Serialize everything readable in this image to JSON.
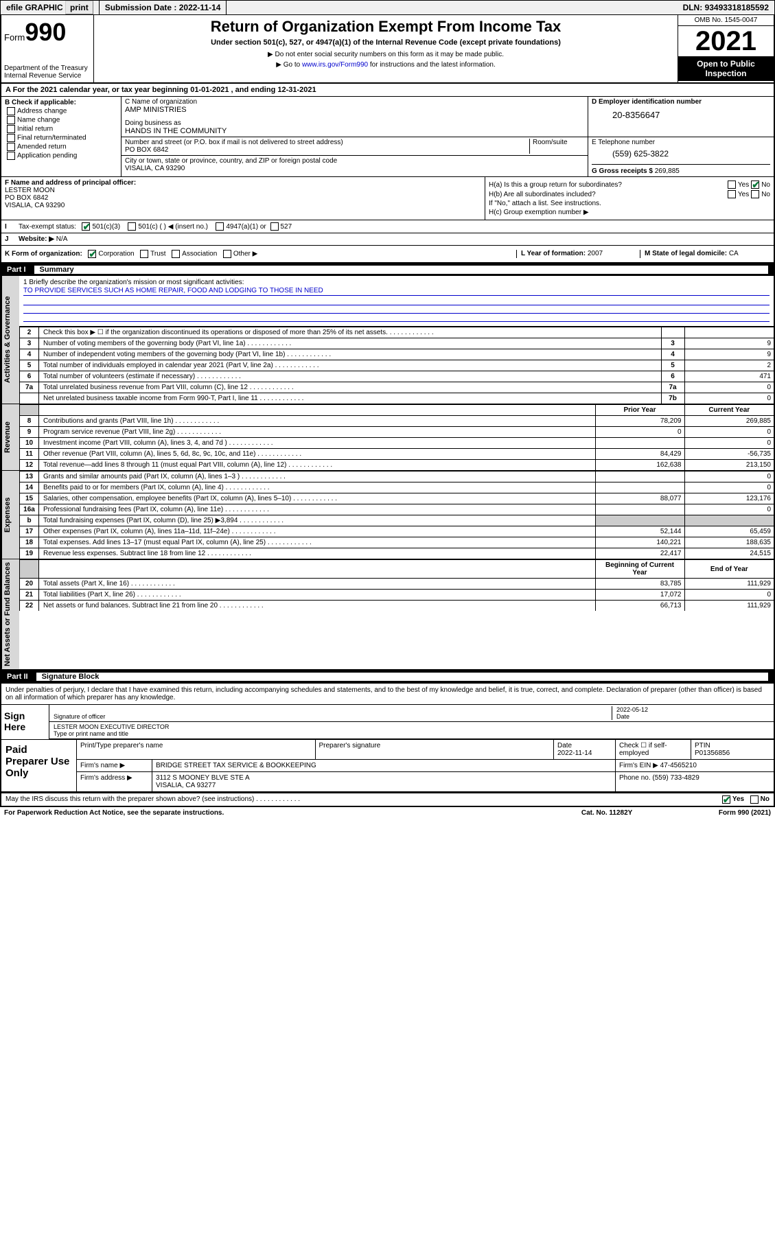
{
  "topbar": {
    "efile": "efile GRAPHIC",
    "print": "print",
    "sub_label": "Submission Date : ",
    "sub_date": "2022-11-14",
    "dln_label": "DLN: ",
    "dln": "93493318185592"
  },
  "header": {
    "form_prefix": "Form",
    "form_num": "990",
    "dept": "Department of the Treasury",
    "irs": "Internal Revenue Service",
    "title": "Return of Organization Exempt From Income Tax",
    "sub1": "Under section 501(c), 527, or 4947(a)(1) of the Internal Revenue Code (except private foundations)",
    "sub2": "▶ Do not enter social security numbers on this form as it may be made public.",
    "sub3_pre": "▶ Go to ",
    "sub3_link": "www.irs.gov/Form990",
    "sub3_post": " for instructions and the latest information.",
    "omb": "OMB No. 1545-0047",
    "year": "2021",
    "open": "Open to Public Inspection"
  },
  "line_a": "For the 2021 calendar year, or tax year beginning 01-01-2021   , and ending 12-31-2021",
  "b": {
    "label": "B Check if applicable:",
    "opts": [
      "Address change",
      "Name change",
      "Initial return",
      "Final return/terminated",
      "Amended return",
      "Application pending"
    ]
  },
  "c": {
    "name_label": "C Name of organization",
    "name": "AMP MINISTRIES",
    "dba_label": "Doing business as",
    "dba": "HANDS IN THE COMMUNITY",
    "addr_label": "Number and street (or P.O. box if mail is not delivered to street address)",
    "room_label": "Room/suite",
    "addr": "PO BOX 6842",
    "city_label": "City or town, state or province, country, and ZIP or foreign postal code",
    "city": "VISALIA, CA  93290"
  },
  "d": {
    "label": "D Employer identification number",
    "ein": "20-8356647"
  },
  "e": {
    "label": "E Telephone number",
    "phone": "(559) 625-3822"
  },
  "g": {
    "label": "G Gross receipts $",
    "val": "269,885"
  },
  "f": {
    "label": "F Name and address of principal officer:",
    "name": "LESTER MOON",
    "addr1": "PO BOX 6842",
    "addr2": "VISALIA, CA  93290"
  },
  "h": {
    "ha": "H(a)  Is this a group return for subordinates?",
    "hb": "H(b)  Are all subordinates included?",
    "hb2": "If \"No,\" attach a list. See instructions.",
    "hc": "H(c)  Group exemption number ▶",
    "yes": "Yes",
    "no": "No"
  },
  "i": {
    "label": "Tax-exempt status:",
    "o1": "501(c)(3)",
    "o2": "501(c) (  ) ◀ (insert no.)",
    "o3": "4947(a)(1) or",
    "o4": "527"
  },
  "j": {
    "label": "Website: ▶",
    "val": "N/A"
  },
  "k": {
    "label": "K Form of organization:",
    "o1": "Corporation",
    "o2": "Trust",
    "o3": "Association",
    "o4": "Other ▶"
  },
  "l": {
    "label": "L Year of formation:",
    "val": "2007"
  },
  "m": {
    "label": "M State of legal domicile:",
    "val": "CA"
  },
  "part1": {
    "num": "Part I",
    "title": "Summary"
  },
  "mission": {
    "q": "1   Briefly describe the organization's mission or most significant activities:",
    "text": "TO PROVIDE SERVICES SUCH AS HOME REPAIR, FOOD AND LODGING TO THOSE IN NEED"
  },
  "tabs": {
    "gov": "Activities & Governance",
    "rev": "Revenue",
    "exp": "Expenses",
    "net": "Net Assets or Fund Balances"
  },
  "gov_rows": [
    {
      "n": "2",
      "d": "Check this box ▶ ☐  if the organization discontinued its operations or disposed of more than 25% of its net assets.",
      "box": "",
      "v": ""
    },
    {
      "n": "3",
      "d": "Number of voting members of the governing body (Part VI, line 1a)",
      "box": "3",
      "v": "9"
    },
    {
      "n": "4",
      "d": "Number of independent voting members of the governing body (Part VI, line 1b)",
      "box": "4",
      "v": "9"
    },
    {
      "n": "5",
      "d": "Total number of individuals employed in calendar year 2021 (Part V, line 2a)",
      "box": "5",
      "v": "2"
    },
    {
      "n": "6",
      "d": "Total number of volunteers (estimate if necessary)",
      "box": "6",
      "v": "471"
    },
    {
      "n": "7a",
      "d": "Total unrelated business revenue from Part VIII, column (C), line 12",
      "box": "7a",
      "v": "0"
    },
    {
      "n": "",
      "d": "Net unrelated business taxable income from Form 990-T, Part I, line 11",
      "box": "7b",
      "v": "0"
    }
  ],
  "twocol_head": {
    "py": "Prior Year",
    "cy": "Current Year"
  },
  "rev_rows": [
    {
      "n": "8",
      "d": "Contributions and grants (Part VIII, line 1h)",
      "py": "78,209",
      "cy": "269,885"
    },
    {
      "n": "9",
      "d": "Program service revenue (Part VIII, line 2g)",
      "py": "0",
      "cy": "0"
    },
    {
      "n": "10",
      "d": "Investment income (Part VIII, column (A), lines 3, 4, and 7d )",
      "py": "",
      "cy": "0"
    },
    {
      "n": "11",
      "d": "Other revenue (Part VIII, column (A), lines 5, 6d, 8c, 9c, 10c, and 11e)",
      "py": "84,429",
      "cy": "-56,735"
    },
    {
      "n": "12",
      "d": "Total revenue—add lines 8 through 11 (must equal Part VIII, column (A), line 12)",
      "py": "162,638",
      "cy": "213,150"
    }
  ],
  "exp_rows": [
    {
      "n": "13",
      "d": "Grants and similar amounts paid (Part IX, column (A), lines 1–3 )",
      "py": "",
      "cy": "0"
    },
    {
      "n": "14",
      "d": "Benefits paid to or for members (Part IX, column (A), line 4)",
      "py": "",
      "cy": "0"
    },
    {
      "n": "15",
      "d": "Salaries, other compensation, employee benefits (Part IX, column (A), lines 5–10)",
      "py": "88,077",
      "cy": "123,176"
    },
    {
      "n": "16a",
      "d": "Professional fundraising fees (Part IX, column (A), line 11e)",
      "py": "",
      "cy": "0"
    },
    {
      "n": "b",
      "d": "Total fundraising expenses (Part IX, column (D), line 25) ▶3,894",
      "py": "—",
      "cy": "—"
    },
    {
      "n": "17",
      "d": "Other expenses (Part IX, column (A), lines 11a–11d, 11f–24e)",
      "py": "52,144",
      "cy": "65,459"
    },
    {
      "n": "18",
      "d": "Total expenses. Add lines 13–17 (must equal Part IX, column (A), line 25)",
      "py": "140,221",
      "cy": "188,635"
    },
    {
      "n": "19",
      "d": "Revenue less expenses. Subtract line 18 from line 12",
      "py": "22,417",
      "cy": "24,515"
    }
  ],
  "net_head": {
    "py": "Beginning of Current Year",
    "cy": "End of Year"
  },
  "net_rows": [
    {
      "n": "20",
      "d": "Total assets (Part X, line 16)",
      "py": "83,785",
      "cy": "111,929"
    },
    {
      "n": "21",
      "d": "Total liabilities (Part X, line 26)",
      "py": "17,072",
      "cy": "0"
    },
    {
      "n": "22",
      "d": "Net assets or fund balances. Subtract line 21 from line 20",
      "py": "66,713",
      "cy": "111,929"
    }
  ],
  "part2": {
    "num": "Part II",
    "title": "Signature Block"
  },
  "sig": {
    "decl": "Under penalties of perjury, I declare that I have examined this return, including accompanying schedules and statements, and to the best of my knowledge and belief, it is true, correct, and complete. Declaration of preparer (other than officer) is based on all information of which preparer has any knowledge.",
    "here": "Sign Here",
    "sig_of": "Signature of officer",
    "date_label": "Date",
    "date": "2022-05-12",
    "name_title": "LESTER MOON  EXECUTIVE DIRECTOR",
    "type_label": "Type or print name and title"
  },
  "prep": {
    "label": "Paid Preparer Use Only",
    "h1": "Print/Type preparer's name",
    "h2": "Preparer's signature",
    "h3": "Date",
    "h3v": "2022-11-14",
    "h4": "Check ☐ if self-employed",
    "h5": "PTIN",
    "h5v": "P01356856",
    "firm_name_l": "Firm's name    ▶",
    "firm_name": "BRIDGE STREET TAX SERVICE & BOOKKEEPING",
    "firm_ein_l": "Firm's EIN ▶",
    "firm_ein": "47-4565210",
    "firm_addr_l": "Firm's address ▶",
    "firm_addr1": "3112 S MOONEY BLVE STE A",
    "firm_addr2": "VISALIA, CA  93277",
    "phone_l": "Phone no.",
    "phone": "(559) 733-4829"
  },
  "discuss": {
    "q": "May the IRS discuss this return with the preparer shown above? (see instructions)",
    "yes": "Yes",
    "no": "No"
  },
  "footer": {
    "pra": "For Paperwork Reduction Act Notice, see the separate instructions.",
    "cat": "Cat. No. 11282Y",
    "form": "Form 990 (2021)"
  }
}
